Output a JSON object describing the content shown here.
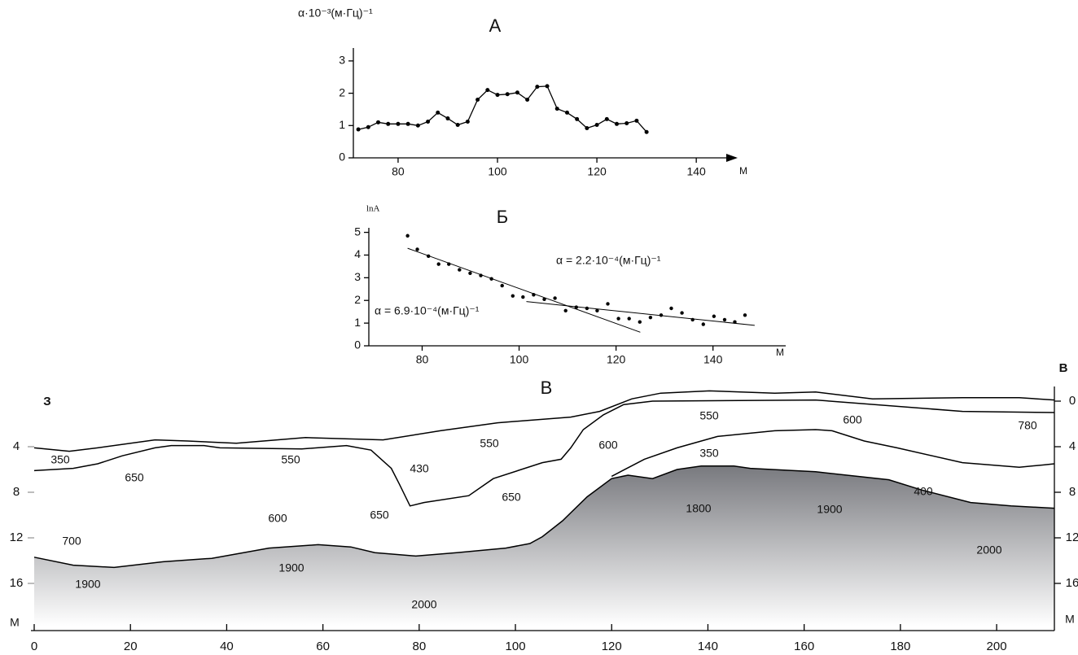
{
  "chart_data": [
    {
      "type": "line",
      "title": "А",
      "y_label": "α·10⁻³(м·Гц)⁻¹",
      "x_unit": "М",
      "color": "#000000",
      "x": [
        72,
        74,
        76,
        78,
        80,
        82,
        84,
        86,
        88,
        90,
        92,
        94,
        96,
        98,
        100,
        102,
        104,
        106,
        108,
        110,
        112,
        114,
        116,
        118,
        120,
        122,
        124,
        126,
        128,
        130
      ],
      "values": [
        0.88,
        0.95,
        1.1,
        1.05,
        1.05,
        1.05,
        1.0,
        1.12,
        1.4,
        1.22,
        1.02,
        1.12,
        1.8,
        2.1,
        1.95,
        1.97,
        2.02,
        1.8,
        2.2,
        2.22,
        1.52,
        1.4,
        1.2,
        0.92,
        1.02,
        1.2,
        1.05,
        1.07,
        1.15,
        0.8
      ],
      "xlim": [
        71,
        148
      ],
      "ylim": [
        0,
        3.4
      ],
      "xticks": [
        80,
        100,
        120,
        140
      ],
      "yticks": [
        0,
        1,
        2,
        3
      ]
    },
    {
      "type": "scatter",
      "title": "Б",
      "y_label": "lnA",
      "x_unit": "М",
      "color": "#000000",
      "x": [
        77,
        79,
        81.3,
        83.4,
        85.5,
        87.7,
        89.9,
        92.1,
        94.3,
        96.5,
        98.7,
        100.8,
        103,
        105.2,
        107.4,
        109.6,
        111.8,
        114,
        116.1,
        118.3,
        120.5,
        122.7,
        124.9,
        127.1,
        129.3,
        131.4,
        133.6,
        135.8,
        138,
        140.2,
        142.4,
        144.5,
        146.6
      ],
      "values": [
        4.85,
        4.25,
        3.95,
        3.6,
        3.6,
        3.35,
        3.2,
        3.1,
        2.95,
        2.65,
        2.2,
        2.15,
        2.25,
        2.05,
        2.1,
        1.55,
        1.7,
        1.65,
        1.55,
        1.85,
        1.2,
        1.2,
        1.05,
        1.25,
        1.35,
        1.65,
        1.45,
        1.15,
        0.95,
        1.3,
        1.15,
        1.05,
        1.35
      ],
      "fits": [
        {
          "x": [
            77,
            125
          ],
          "y": [
            4.3,
            0.6
          ]
        },
        {
          "x": [
            101.5,
            148.6
          ],
          "y": [
            1.95,
            0.9
          ]
        }
      ],
      "annotations": [
        "α = 6.9·10⁻⁴(м·Гц)⁻¹",
        "α = 2.2·10⁻⁴(м·Гц)⁻¹"
      ],
      "xlim": [
        69,
        155
      ],
      "ylim": [
        0,
        5.2
      ],
      "xticks": [
        80,
        100,
        120,
        140
      ],
      "yticks": [
        0,
        1,
        2,
        3,
        4,
        5
      ]
    },
    {
      "type": "section",
      "title": "В",
      "left_label": "З",
      "right_label": "В",
      "unit_label": "М",
      "xlim": [
        0,
        212
      ],
      "ylim": [
        -2,
        20
      ],
      "xticks": [
        0,
        20,
        40,
        60,
        80,
        100,
        120,
        140,
        160,
        180,
        200
      ],
      "yticks_left": [
        4,
        8,
        12,
        16
      ],
      "yticks_right": [
        0,
        4,
        8,
        12,
        16
      ],
      "boundaries": [
        {
          "x": [
            0,
            7.3,
            13.2,
            25.1,
            31.9,
            42,
            56.4,
            72.5,
            84.4,
            96.3,
            111.5,
            117.5,
            124.2,
            130.2,
            140.3,
            153.9,
            162.4,
            174.2,
            192.9,
            204.7,
            212
          ],
          "depth": [
            4.1,
            4.4,
            4.1,
            3.4,
            3.5,
            3.7,
            3.2,
            3.4,
            2.6,
            1.9,
            1.4,
            0.9,
            -0.2,
            -0.7,
            -0.9,
            -0.7,
            -0.8,
            -0.2,
            -0.3,
            -0.3,
            -0.1
          ]
        },
        {
          "x": [
            0,
            8.1,
            13.2,
            18.3,
            25.1,
            28.5,
            35.3,
            38.6,
            55.6,
            64.9,
            70,
            74.2,
            75.9,
            78.1,
            81,
            90.3,
            95.4,
            105.6,
            109.5,
            111.5,
            114.1,
            118.3,
            122.5,
            128.5,
            162.4,
            192.9,
            212
          ],
          "depth": [
            6.1,
            5.9,
            5.5,
            4.8,
            4.1,
            3.9,
            3.9,
            4.1,
            4.2,
            3.9,
            4.3,
            5.9,
            7.3,
            9.2,
            8.9,
            8.3,
            6.8,
            5.4,
            5.1,
            4.1,
            2.5,
            1.2,
            0.3,
            0,
            -0.1,
            0.9,
            1
          ]
        },
        {
          "x": [
            120,
            126.8,
            133.6,
            142,
            153.9,
            162.4,
            165.8,
            172.5,
            179.3,
            192.9,
            204.7,
            209.8,
            212
          ],
          "depth": [
            6.6,
            5.1,
            4.1,
            3.1,
            2.6,
            2.5,
            2.6,
            3.5,
            4.1,
            5.4,
            5.8,
            5.6,
            5.5
          ]
        },
        {
          "x": [
            0,
            8.1,
            16.6,
            26.8,
            36.9,
            48.8,
            59,
            65.8,
            70.8,
            79.3,
            87.8,
            98,
            103,
            105.6,
            109.8,
            114.9,
            120,
            123.4,
            128.5,
            133.6,
            138.6,
            145.4,
            148.8,
            162.4,
            177.6,
            184.4,
            194.6,
            203,
            212
          ],
          "depth": [
            13.7,
            14.4,
            14.6,
            14.1,
            13.8,
            12.9,
            12.6,
            12.8,
            13.3,
            13.6,
            13.3,
            12.9,
            12.5,
            11.9,
            10.5,
            8.4,
            6.8,
            6.5,
            6.8,
            6,
            5.7,
            5.7,
            5.9,
            6.2,
            6.9,
            7.8,
            8.9,
            9.2,
            9.4
          ]
        }
      ],
      "zone_labels": [
        "350",
        "650",
        "550",
        "600",
        "700",
        "1900",
        "1900",
        "2000",
        "430",
        "650",
        "550",
        "650",
        "600",
        "550",
        "350",
        "600",
        "780",
        "400",
        "1800",
        "1900",
        "2000"
      ]
    }
  ]
}
